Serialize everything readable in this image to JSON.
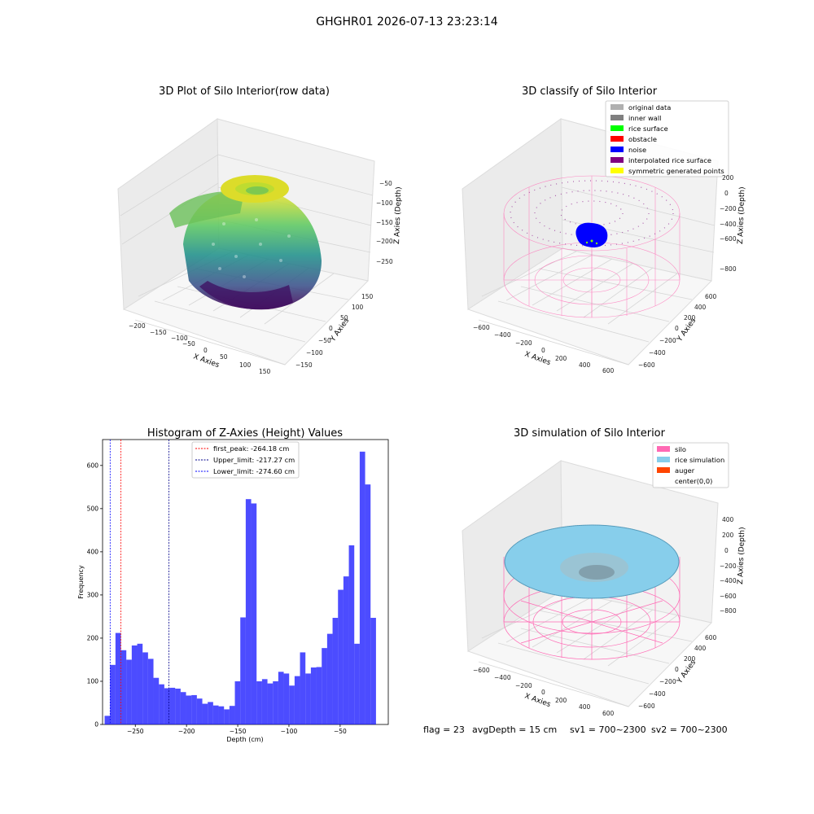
{
  "suptitle": "GHGHR01 2026-07-13 23:23:14",
  "panels": {
    "raw": {
      "title": "3D Plot of Silo Interior(row data)",
      "xlabel": "X Axies",
      "ylabel": "Y Axies",
      "zlabel": "Z Axies (Depth)",
      "xticks": [
        "−200",
        "−150",
        "−100",
        "−50",
        "0",
        "50",
        "100",
        "150"
      ],
      "yticks": [
        "−150",
        "−100",
        "−50",
        "0",
        "50",
        "100",
        "150"
      ],
      "zticks": [
        "−50",
        "−100",
        "−150",
        "−200",
        "−250"
      ]
    },
    "classify": {
      "title": "3D classify of Silo Interior",
      "xlabel": "X Axies",
      "ylabel": "Y Axies",
      "zlabel": "Z Axies (Depth)",
      "xticks": [
        "−600",
        "−400",
        "−200",
        "0",
        "200",
        "400",
        "600"
      ],
      "yticks": [
        "−600",
        "−400",
        "−200",
        "0",
        "200",
        "400",
        "600"
      ],
      "zticks": [
        "200",
        "0",
        "−200",
        "−400",
        "−600",
        "−800"
      ],
      "legend": [
        {
          "label": "original data",
          "color": "#b0b0b0"
        },
        {
          "label": "inner wall",
          "color": "#808080"
        },
        {
          "label": "rice surface",
          "color": "#00ff00"
        },
        {
          "label": "obstacle",
          "color": "#ff0000"
        },
        {
          "label": "noise",
          "color": "#0000ff"
        },
        {
          "label": "interpolated rice surface",
          "color": "#800080"
        },
        {
          "label": "symmetric generated points",
          "color": "#ffff00"
        }
      ]
    },
    "simulation": {
      "title": "3D simulation of Silo Interior",
      "xlabel": "X Axies",
      "ylabel": "Y Axies",
      "zlabel": "Z Axies (Depth)",
      "xticks": [
        "−600",
        "−400",
        "−200",
        "0",
        "200",
        "400",
        "600"
      ],
      "yticks": [
        "−600",
        "−400",
        "−200",
        "0",
        "200",
        "400",
        "600"
      ],
      "zticks": [
        "400",
        "200",
        "0",
        "−200",
        "−400",
        "−600",
        "−800"
      ],
      "legend": [
        {
          "label": "silo",
          "color": "#ff69b4"
        },
        {
          "label": "rice simulation",
          "color": "#87ceeb"
        },
        {
          "label": "auger",
          "color": "#ff4500"
        },
        {
          "label": "center(0,0)",
          "color": ""
        }
      ]
    }
  },
  "status": {
    "flag": "flag = 23",
    "avg_depth": "avgDepth = 15 cm",
    "sv1": "sv1 = 700~2300",
    "sv2": "sv2 = 700~2300"
  },
  "chart_data": {
    "type": "bar",
    "title": "Histogram of Z-Axies (Height) Values",
    "xlabel": "Depth (cm)",
    "ylabel": "Frequency",
    "color": "#0000ff",
    "bin_start": -280,
    "bin_width": 5.3,
    "values": [
      20,
      138,
      212,
      172,
      150,
      183,
      187,
      167,
      152,
      108,
      93,
      84,
      85,
      83,
      75,
      67,
      68,
      60,
      48,
      52,
      44,
      42,
      35,
      43,
      100,
      248,
      522,
      512,
      100,
      105,
      95,
      100,
      122,
      118,
      90,
      112,
      167,
      118,
      132,
      133,
      177,
      210,
      247,
      312,
      343,
      415,
      187,
      632,
      556,
      247
    ],
    "xlim": [
      -282,
      -3
    ],
    "ylim": [
      0,
      660
    ],
    "xticks": [
      -250,
      -200,
      -150,
      -100,
      -50
    ],
    "yticks": [
      0,
      100,
      200,
      300,
      400,
      500,
      600
    ],
    "vlines": [
      {
        "label": "first_peak: -264.18 cm",
        "x": -264.18,
        "color": "#ff0000"
      },
      {
        "label": "Upper_limit: -217.27 cm",
        "x": -217.27,
        "color": "#00008b"
      },
      {
        "label": "Lower_limit: -274.60 cm",
        "x": -274.6,
        "color": "#0000ff"
      }
    ]
  }
}
